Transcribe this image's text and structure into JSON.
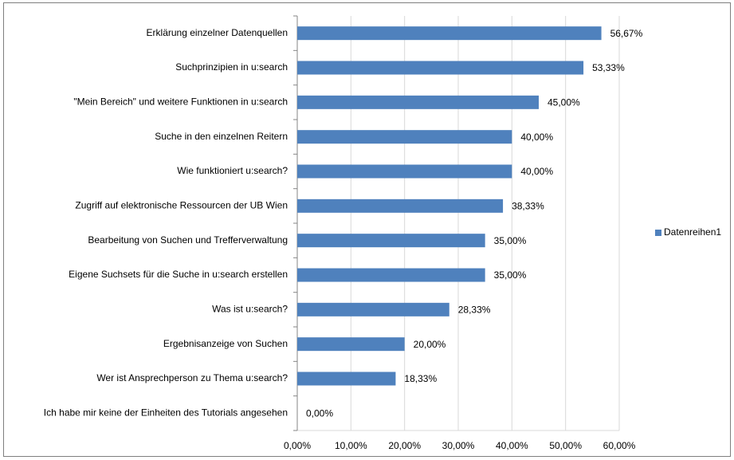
{
  "chart_data": {
    "type": "barh",
    "categories": [
      "Erklärung einzelner Datenquellen",
      "Suchprinzipien in u:search",
      "\"Mein Bereich\" und weitere Funktionen in u:search",
      "Suche in den einzelnen Reitern",
      "Wie funktioniert u:search?",
      "Zugriff auf elektronische Ressourcen der UB Wien",
      "Bearbeitung von Suchen und Trefferverwaltung",
      "Eigene Suchsets für die Suche in u:search erstellen",
      "Was ist u:search?",
      "Ergebnisanzeige von Suchen",
      "Wer ist Ansprechperson zu Thema u:search?",
      "Ich habe mir keine der Einheiten des Tutorials angesehen"
    ],
    "series": [
      {
        "name": "Datenreihen1",
        "color": "#4f81bd",
        "values": [
          56.67,
          53.33,
          45.0,
          40.0,
          40.0,
          38.33,
          35.0,
          35.0,
          28.33,
          20.0,
          18.33,
          0.0
        ],
        "value_labels": [
          "56,67%",
          "53,33%",
          "45,00%",
          "40,00%",
          "40,00%",
          "38,33%",
          "35,00%",
          "35,00%",
          "28,33%",
          "20,00%",
          "18,33%",
          "0,00%"
        ]
      }
    ],
    "xlim": [
      0,
      60
    ],
    "xticks": [
      {
        "value": 0,
        "label": "0,00%"
      },
      {
        "value": 10,
        "label": "10,00%"
      },
      {
        "value": 20,
        "label": "20,00%"
      },
      {
        "value": 30,
        "label": "30,00%"
      },
      {
        "value": 40,
        "label": "40,00%"
      },
      {
        "value": 50,
        "label": "50,00%"
      },
      {
        "value": 60,
        "label": "60,00%"
      }
    ],
    "grid": true,
    "legend": "right"
  }
}
